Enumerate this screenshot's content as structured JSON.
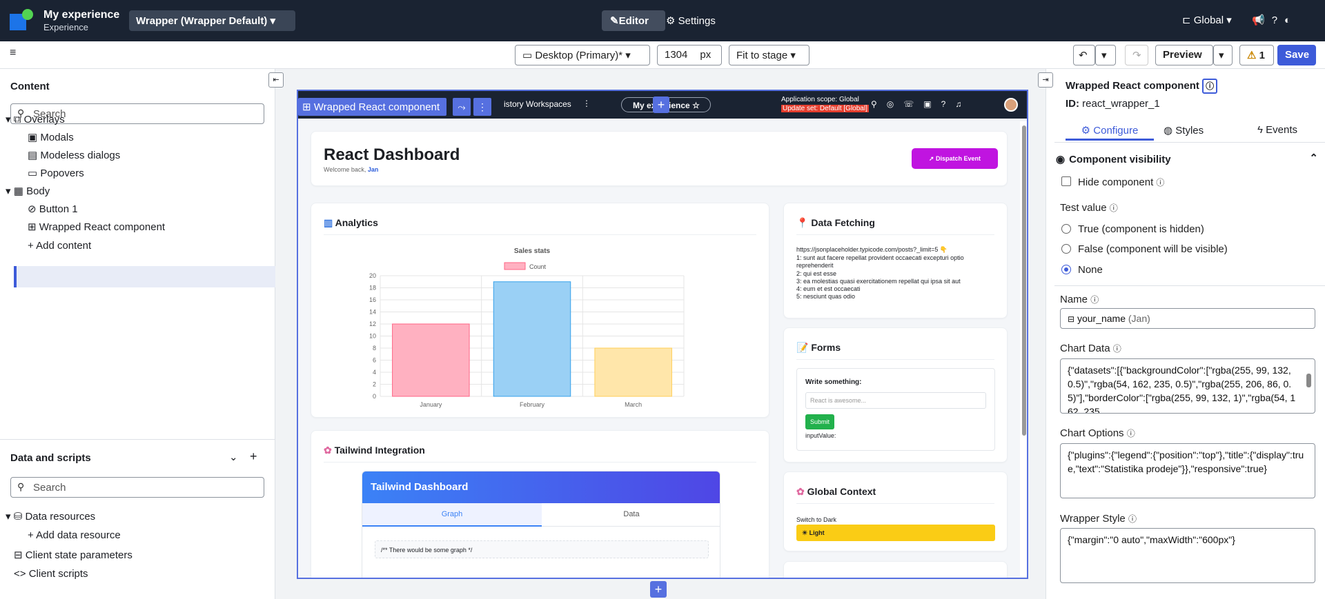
{
  "app": {
    "title": "My experience",
    "subtitle": "Experience"
  },
  "top": {
    "wrapper": "Wrapper (Wrapper Default)",
    "editor": "Editor",
    "settings": "Settings",
    "global": "Global"
  },
  "toolbar": {
    "device": "Desktop (Primary)*",
    "width": "1304",
    "unit": "px",
    "fit": "Fit to stage",
    "preview": "Preview",
    "warnings": "1",
    "save": "Save"
  },
  "left": {
    "content_title": "Content",
    "search_placeholder": "Search",
    "tree": [
      {
        "label": "Overlays"
      },
      {
        "label": "Modals"
      },
      {
        "label": "Modeless dialogs"
      },
      {
        "label": "Popovers"
      },
      {
        "label": "Body"
      },
      {
        "label": "Button 1"
      },
      {
        "label": "Wrapped React component"
      },
      {
        "label": "Add content"
      }
    ],
    "data_title": "Data and scripts",
    "data_search": "Search",
    "data_tree": [
      {
        "label": "Data resources"
      },
      {
        "label": "Add data resource"
      },
      {
        "label": "Client state parameters"
      },
      {
        "label": "Client scripts"
      }
    ]
  },
  "stage": {
    "selection_label": "Wrapped React component",
    "nav": {
      "history": "istory",
      "workspaces": "Workspaces",
      "pill": "My experience",
      "scope": "Application scope: Global",
      "update_set": "Update set: Default [Global]"
    },
    "dashboard": {
      "title": "React Dashboard",
      "welcome": "Welcome back,",
      "user": "Jan",
      "dispatch": "Dispatch Event"
    },
    "analytics": {
      "title": "Analytics"
    },
    "fetching": {
      "title": "Data Fetching",
      "url": "https://jsonplaceholder.typicode.com/posts?_limit=5",
      "posts": [
        "1: sunt aut facere repellat provident occaecati excepturi optio reprehenderit",
        "2: qui est esse",
        "3: ea molestias quasi exercitationem repellat qui ipsa sit aut",
        "4: eum et est occaecati",
        "5: nesciunt quas odio"
      ]
    },
    "forms": {
      "title": "Forms",
      "label": "Write something:",
      "placeholder": "React is awesome...",
      "submit": "Submit",
      "input_value": "inputValue:"
    },
    "tailwind": {
      "title": "Tailwind Integration",
      "header": "Tailwind Dashboard",
      "tab_graph": "Graph",
      "tab_data": "Data",
      "code": "/** There would be some graph */"
    },
    "global_context": {
      "title": "Global Context",
      "switch": "Switch to Dark",
      "light": "Light"
    }
  },
  "chart_data": {
    "type": "bar",
    "title": "Sales stats",
    "legend": [
      "Count"
    ],
    "categories": [
      "January",
      "February",
      "March"
    ],
    "values": [
      12,
      19,
      8
    ],
    "ylim": [
      0,
      20
    ],
    "yticks": [
      "0",
      "2",
      "4",
      "6",
      "8",
      "10",
      "12",
      "14",
      "16",
      "18",
      "20"
    ],
    "fill_colors": [
      "#ffb1c1",
      "#9ad0f5",
      "#ffe6aa"
    ],
    "border_colors": [
      "#ff6384",
      "#36a2eb",
      "#ffce56"
    ]
  },
  "right": {
    "component_title": "Wrapped React component",
    "id_label": "ID:",
    "id_value": "react_wrapper_1",
    "tabs": {
      "configure": "Configure",
      "styles": "Styles",
      "events": "Events"
    },
    "visibility": "Component visibility",
    "hide": "Hide component",
    "test_value": "Test value",
    "radio_true": "True (component is hidden)",
    "radio_false": "False (component will be visible)",
    "radio_none": "None",
    "name_label": "Name",
    "name_value": "your_name",
    "name_hint": "(Jan)",
    "chart_data_label": "Chart Data",
    "chart_data_value": "{\"datasets\":[{\"backgroundColor\":[\"rgba(255, 99, 132, 0.5)\",\"rgba(54, 162, 235, 0.5)\",\"rgba(255, 206, 86, 0.5)\"],\"borderColor\":[\"rgba(255, 99, 132, 1)\",\"rgba(54, 162, 235",
    "chart_options_label": "Chart Options",
    "chart_options_value": "{\"plugins\":{\"legend\":{\"position\":\"top\"},\"title\":{\"display\":true,\"text\":\"Statistika prodeje\"}},\"responsive\":true}",
    "wrapper_style_label": "Wrapper Style",
    "wrapper_style_value": "{\"margin\":\"0 auto\",\"maxWidth\":\"600px\"}"
  }
}
